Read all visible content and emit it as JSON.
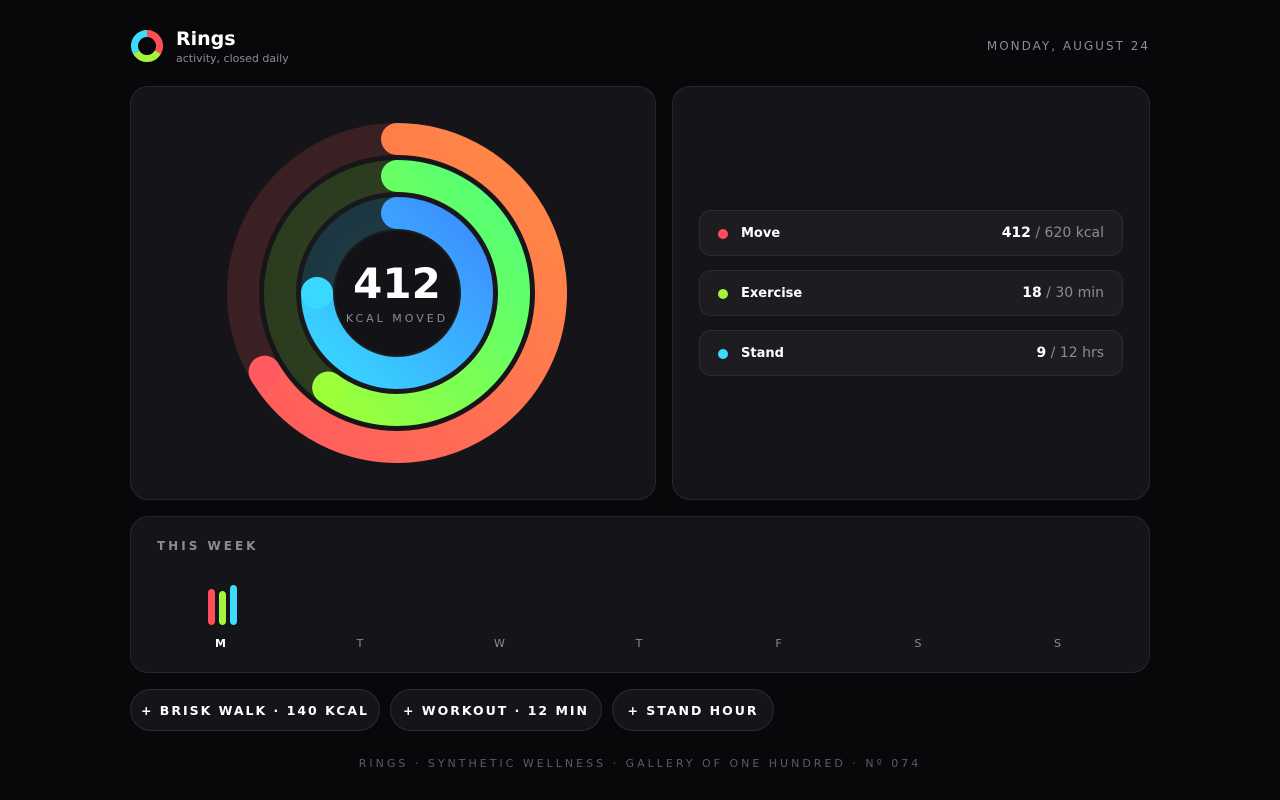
{
  "app": {
    "title": "Rings",
    "subtitle": "activity, closed daily",
    "date": "MONDAY, AUGUST 24"
  },
  "rings": {
    "center_value": "412",
    "center_label": "KCAL MOVED",
    "move": {
      "value": 412,
      "goal": 620,
      "colors": [
        "#ff5a5f",
        "#ff8c42"
      ]
    },
    "exercise": {
      "value": 18,
      "goal": 30,
      "colors": [
        "#9dff3a",
        "#4dff7a"
      ]
    },
    "stand": {
      "value": 9,
      "goal": 12,
      "colors": [
        "#38d8ff",
        "#3d8bff"
      ]
    }
  },
  "stats": [
    {
      "label": "Move",
      "value": "412",
      "goal": "/ 620 kcal",
      "color": "#ff4d5a"
    },
    {
      "label": "Exercise",
      "value": "18",
      "goal": "/ 30 min",
      "color": "#a6f53a"
    },
    {
      "label": "Stand",
      "value": "9",
      "goal": "/ 12 hrs",
      "color": "#3ddcff"
    }
  ],
  "week": {
    "title": "THIS WEEK",
    "days": [
      {
        "label": "M",
        "active": true,
        "move": 0.66,
        "exercise": 0.6,
        "stand": 0.75
      },
      {
        "label": "T",
        "active": false
      },
      {
        "label": "W",
        "active": false
      },
      {
        "label": "T",
        "active": false
      },
      {
        "label": "F",
        "active": false
      },
      {
        "label": "S",
        "active": false
      },
      {
        "label": "S",
        "active": false
      }
    ]
  },
  "actions": [
    "+ BRISK WALK · 140 KCAL",
    "+ WORKOUT · 12 MIN",
    "+ STAND HOUR"
  ],
  "footer": "RINGS · SYNTHETIC WELLNESS · GALLERY OF ONE HUNDRED · Nº 074"
}
